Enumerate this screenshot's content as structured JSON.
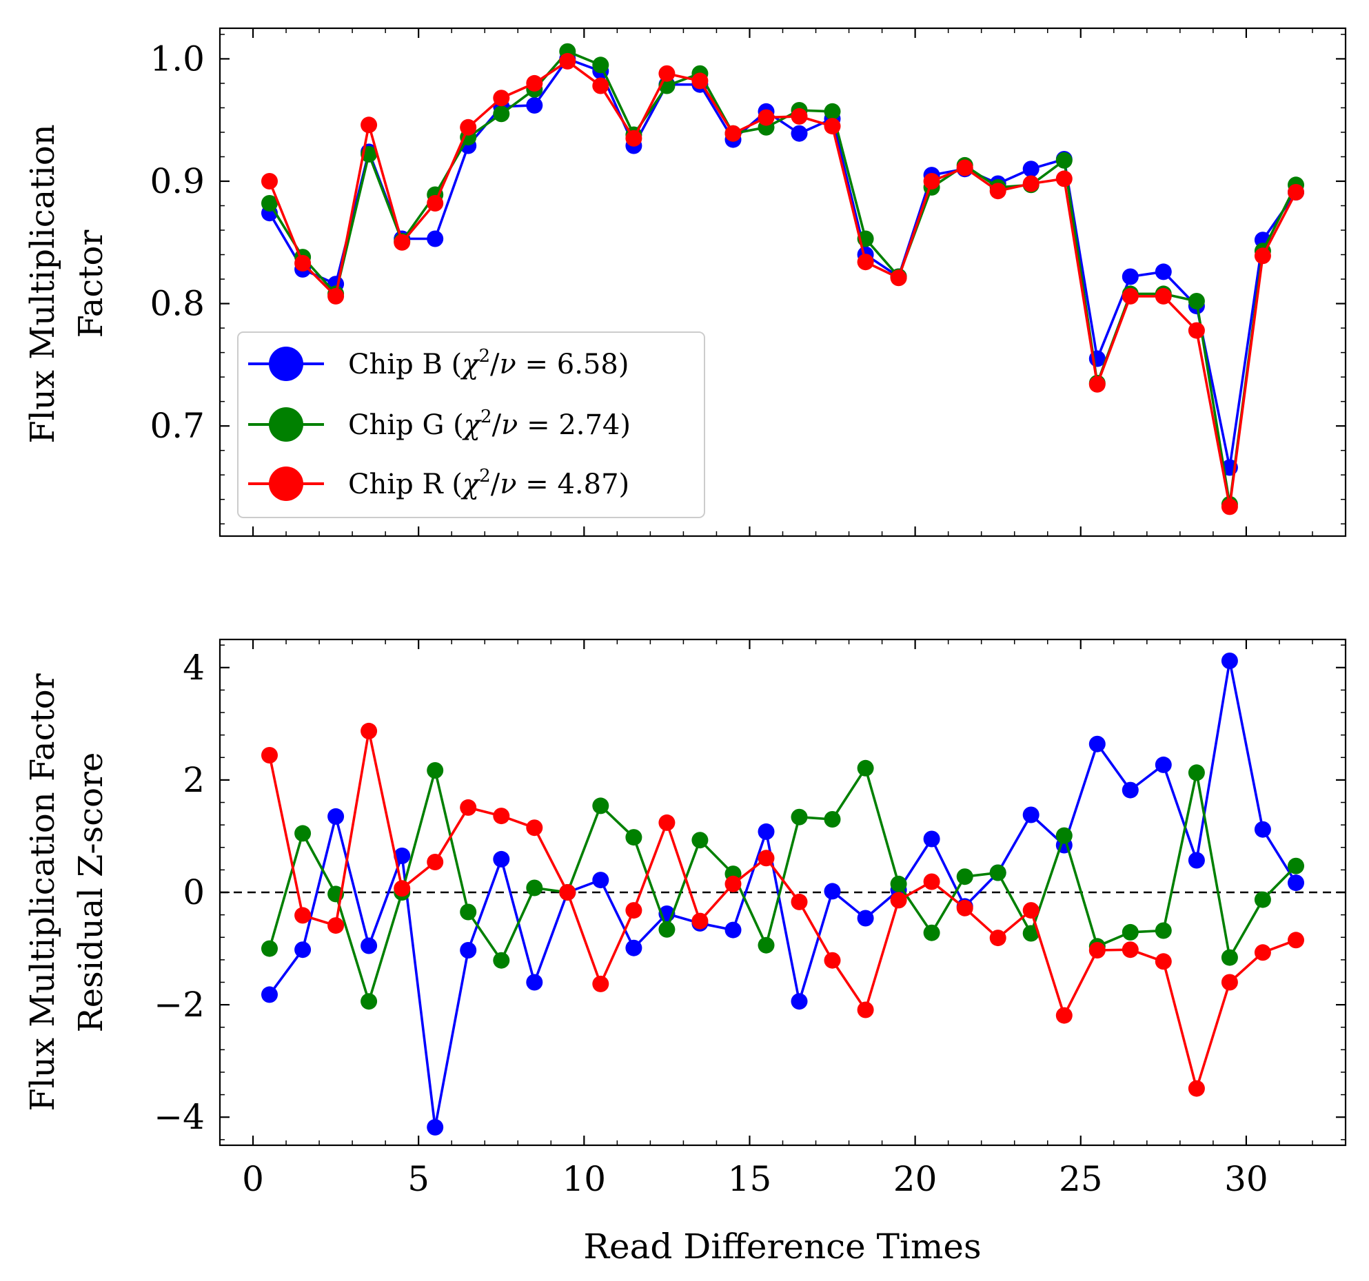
{
  "colors": {
    "b": "#0000ff",
    "g": "#008000",
    "r": "#ff0000",
    "zero_line": "#000000"
  },
  "chart_data": [
    {
      "type": "line",
      "ylabel": [
        "Flux Multiplication",
        "Factor"
      ],
      "xlim": [
        -1,
        33
      ],
      "ylim": [
        0.61,
        1.025
      ],
      "yticks": [
        0.7,
        0.8,
        0.9,
        1.0
      ],
      "ytick_labels": [
        "0.7",
        "0.8",
        "0.9",
        "1.0"
      ],
      "yminor_step": 0.02,
      "legend": {
        "placement": "lower-left"
      },
      "x": [
        0.5,
        1.5,
        2.5,
        3.5,
        4.5,
        5.5,
        6.5,
        7.5,
        8.5,
        9.5,
        10.5,
        11.5,
        12.5,
        13.5,
        14.5,
        15.5,
        16.5,
        17.5,
        18.5,
        19.5,
        20.5,
        21.5,
        22.5,
        23.5,
        24.5,
        25.5,
        26.5,
        27.5,
        28.5,
        29.5,
        30.5,
        31.5
      ],
      "series": [
        {
          "name": "Chip B ($\\chi^2/\\nu = 6.58$)",
          "label_prefix": "Chip B (",
          "label_suffix": " = 6.58)",
          "color_key": "b",
          "values": [
            0.874,
            0.828,
            0.816,
            0.924,
            0.853,
            0.853,
            0.929,
            0.961,
            0.962,
            1.0,
            0.99,
            0.929,
            0.979,
            0.979,
            0.934,
            0.957,
            0.939,
            0.951,
            0.84,
            0.822,
            0.905,
            0.91,
            0.898,
            0.91,
            0.918,
            0.755,
            0.822,
            0.826,
            0.798,
            0.666,
            0.852,
            0.891
          ]
        },
        {
          "name": "Chip G ($\\chi^2/\\nu = 2.74$)",
          "label_prefix": "Chip G (",
          "label_suffix": " = 2.74)",
          "color_key": "g",
          "values": [
            0.882,
            0.838,
            0.808,
            0.922,
            0.851,
            0.889,
            0.936,
            0.955,
            0.975,
            1.006,
            0.995,
            0.938,
            0.978,
            0.988,
            0.939,
            0.944,
            0.958,
            0.957,
            0.853,
            0.822,
            0.895,
            0.913,
            0.895,
            0.897,
            0.917,
            0.735,
            0.808,
            0.808,
            0.802,
            0.636,
            0.843,
            0.897
          ]
        },
        {
          "name": "Chip R ($\\chi^2/\\nu = 4.87$)",
          "label_prefix": "Chip R (",
          "label_suffix": " = 4.87)",
          "color_key": "r",
          "values": [
            0.9,
            0.833,
            0.806,
            0.946,
            0.85,
            0.882,
            0.944,
            0.968,
            0.98,
            0.998,
            0.978,
            0.935,
            0.988,
            0.982,
            0.939,
            0.952,
            0.953,
            0.945,
            0.834,
            0.821,
            0.9,
            0.911,
            0.892,
            0.898,
            0.902,
            0.734,
            0.806,
            0.806,
            0.778,
            0.634,
            0.839,
            0.891
          ]
        }
      ]
    },
    {
      "type": "line",
      "xlabel": "Read Difference Times",
      "ylabel": [
        "Flux Multiplication Factor",
        "Residual Z-score"
      ],
      "xlim": [
        -1,
        33
      ],
      "ylim": [
        -4.5,
        4.5
      ],
      "xticks": [
        0,
        5,
        10,
        15,
        20,
        25,
        30
      ],
      "xtick_labels": [
        "0",
        "5",
        "10",
        "15",
        "20",
        "25",
        "30"
      ],
      "yticks": [
        -4,
        -2,
        0,
        2,
        4
      ],
      "ytick_labels": [
        "−4",
        "−2",
        "0",
        "2",
        "4"
      ],
      "xminor_step": 1,
      "yminor_step": 0.4,
      "reference_line_y": 0,
      "x": [
        0.5,
        1.5,
        2.5,
        3.5,
        4.5,
        5.5,
        6.5,
        7.5,
        8.5,
        9.5,
        10.5,
        11.5,
        12.5,
        13.5,
        14.5,
        15.5,
        16.5,
        17.5,
        18.5,
        19.5,
        20.5,
        21.5,
        22.5,
        23.5,
        24.5,
        25.5,
        26.5,
        27.5,
        28.5,
        29.5,
        30.5,
        31.5
      ],
      "series": [
        {
          "color_key": "b",
          "values": [
            -1.82,
            -1.02,
            1.35,
            -0.95,
            0.65,
            -4.18,
            -1.03,
            0.59,
            -1.6,
            0.0,
            0.22,
            -0.99,
            -0.38,
            -0.55,
            -0.67,
            1.08,
            -1.94,
            0.02,
            -0.46,
            0.04,
            0.95,
            -0.25,
            0.35,
            1.38,
            0.84,
            2.64,
            1.82,
            2.27,
            0.57,
            4.12,
            1.12,
            0.17
          ]
        },
        {
          "color_key": "g",
          "values": [
            -1.0,
            1.05,
            -0.03,
            -1.94,
            0.0,
            2.17,
            -0.35,
            -1.21,
            0.08,
            0.0,
            1.54,
            0.98,
            -0.66,
            0.93,
            0.33,
            -0.94,
            1.34,
            1.3,
            2.21,
            0.15,
            -0.72,
            0.28,
            0.35,
            -0.73,
            1.01,
            -0.96,
            -0.71,
            -0.68,
            2.13,
            -1.16,
            -0.13,
            0.47
          ]
        },
        {
          "color_key": "r",
          "values": [
            2.44,
            -0.41,
            -0.59,
            2.87,
            0.07,
            0.54,
            1.51,
            1.36,
            1.15,
            0.0,
            -1.63,
            -0.32,
            1.24,
            -0.51,
            0.15,
            0.61,
            -0.17,
            -1.21,
            -2.09,
            -0.14,
            0.19,
            -0.28,
            -0.81,
            -0.32,
            -2.19,
            -1.03,
            -1.02,
            -1.23,
            -3.49,
            -1.6,
            -1.07,
            -0.85
          ]
        }
      ]
    }
  ]
}
